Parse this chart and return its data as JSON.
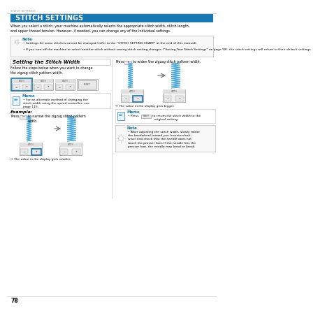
{
  "page_label": "STITCH SETTINGS",
  "title": "STITCH SETTINGS",
  "title_bg": "#1878b4",
  "title_color": "#ffffff",
  "intro_text": "When you select a stitch, your machine automatically selects the appropriate stitch width, stitch length,\nand upper thread tension. However, if needed, you can change any of the individual settings.",
  "note_title": "Note",
  "note_color": "#1878b4",
  "note_bullet1": "Settings for some stitches cannot be changed (refer to the “STITCH SETTING CHART” at the end of this manual).",
  "note_bullet2": "If you turn off the machine or select another stitch without saving stitch setting changes (“Saving Your Stitch Settings” on page 92), the stitch settings will return to their default settings.",
  "section_title": "Setting the Stitch Width",
  "follow_text": "Follow the steps below when you want to change\nthe zigzag stitch pattern width.",
  "memo_title": "Memo",
  "memo_color": "#1878b4",
  "memo_text": "For an alternate method of changing the\nstitch width using the speed controller, see\npage 115.",
  "example_title": "Example:",
  "press_minus_text1": "Press",
  "press_minus_text2": "to narrow the zigzag stitch pattern width.",
  "arrow_narrow": "→ The value in the display gets smaller.",
  "press_plus_text1": "Press",
  "press_plus_text2": "to widen the zigzag stitch pattern width.",
  "arrow_wider": "→ The value in the display gets bigger.",
  "memo2_title": "Memo",
  "memo2_color": "#1878b4",
  "memo2_text1": "Press",
  "memo2_text2": "to return the stitch width to the original setting.",
  "note2_title": "Note",
  "note2_color": "#1878b4",
  "note2_text": "After adjusting the stitch width, slowly rotate\nthe handwheel toward you (counterclock-\nwise) and check that the needle does not\ntouch the presser foot. If the needle hits the\npresser foot, the needle may bend or break.",
  "page_number": "78",
  "bg_color": "#ffffff",
  "text_color": "#000000",
  "zigzag_color": "#4aa8d8",
  "blue_color": "#1878b4",
  "divider_color": "#bbbbbb",
  "note_bg": "#f8f8f8",
  "memo_bg": "#ffffff"
}
